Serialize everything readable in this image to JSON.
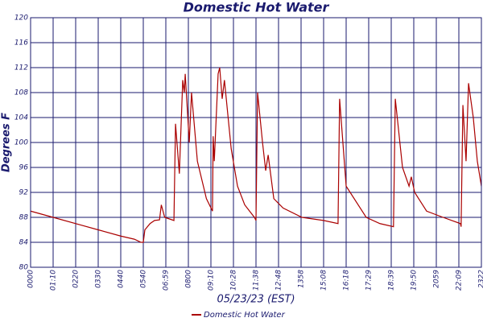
{
  "chart_data": {
    "type": "line",
    "title": "Domestic Hot Water",
    "xlabel": "05/23/23 (EST)",
    "ylabel": "Degrees F",
    "x": [
      0,
      1,
      2.2,
      3,
      4,
      4.6,
      4.9,
      5.0,
      5.07,
      5.3,
      5.5,
      5.72,
      5.8,
      5.95,
      6.36,
      6.43,
      6.6,
      6.75,
      6.82,
      6.86,
      7.04,
      7.14,
      7.4,
      7.8,
      8.07,
      8.1,
      8.15,
      8.32,
      8.39,
      8.5,
      8.6,
      8.9,
      9.18,
      9.5,
      9.93,
      10.0,
      10.07,
      10.29,
      10.43,
      10.54,
      10.79,
      11.2,
      12.04,
      13.0,
      13.64,
      13.71,
      14.0,
      14.89,
      15.5,
      16.1,
      16.18,
      16.5,
      16.79,
      16.89,
      17.04,
      17.57,
      18.3,
      19.07,
      19.1,
      19.18,
      19.32,
      19.43,
      19.64,
      19.82,
      20
    ],
    "series": [
      {
        "name": "Domestic Hot Water",
        "color": "#aa0000",
        "values": [
          89,
          88,
          86.8,
          86,
          85,
          84.5,
          84,
          84,
          86,
          87,
          87.5,
          87.6,
          90,
          88,
          87.5,
          103,
          95,
          110,
          108,
          111,
          100,
          108,
          97,
          91,
          89,
          101,
          97,
          111,
          112,
          107,
          110,
          99,
          93,
          90,
          88,
          87.5,
          108,
          100,
          95.5,
          98,
          91,
          89.5,
          88,
          87.5,
          87,
          107,
          93,
          88,
          87,
          86.5,
          107,
          96,
          93,
          94.5,
          92,
          89,
          88,
          87,
          86.5,
          106,
          97,
          109.5,
          104,
          97,
          93
        ]
      }
    ],
    "xlim": [
      0,
      20
    ],
    "ylim": [
      80,
      120
    ],
    "xticks": [
      {
        "value": 0,
        "label": "0000"
      },
      {
        "value": 1,
        "label": "01:10"
      },
      {
        "value": 2,
        "label": "0220"
      },
      {
        "value": 3,
        "label": "0330"
      },
      {
        "value": 4,
        "label": "0440"
      },
      {
        "value": 5,
        "label": "0540"
      },
      {
        "value": 6,
        "label": "06:59"
      },
      {
        "value": 7,
        "label": "0800"
      },
      {
        "value": 8,
        "label": "09:10"
      },
      {
        "value": 9,
        "label": "10:28"
      },
      {
        "value": 10,
        "label": "11:38"
      },
      {
        "value": 11,
        "label": "12:48"
      },
      {
        "value": 12,
        "label": "1358"
      },
      {
        "value": 13,
        "label": "15:08"
      },
      {
        "value": 14,
        "label": "16:18"
      },
      {
        "value": 15,
        "label": "17:29"
      },
      {
        "value": 16,
        "label": "18:39"
      },
      {
        "value": 17,
        "label": "19:50"
      },
      {
        "value": 18,
        "label": "2059"
      },
      {
        "value": 19,
        "label": "22:09"
      },
      {
        "value": 20,
        "label": "2322"
      }
    ],
    "yticks": [
      80,
      84,
      88,
      92,
      96,
      100,
      104,
      108,
      112,
      116,
      120
    ],
    "grid": true,
    "legend": "bottom"
  }
}
